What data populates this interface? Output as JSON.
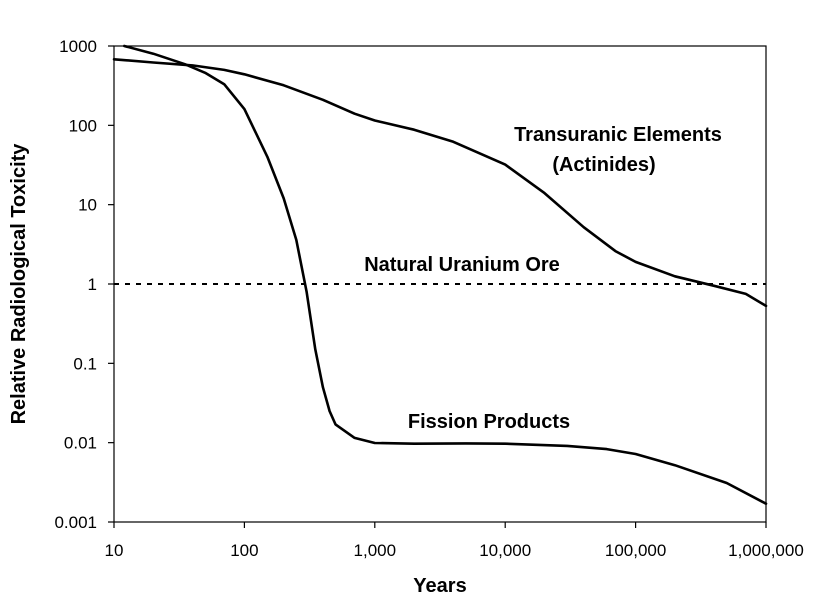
{
  "chart_data": {
    "type": "line",
    "title": "",
    "xlabel": "Years",
    "ylabel": "Relative Radiological Toxicity",
    "x_scale": "log",
    "y_scale": "log",
    "xlim": [
      10,
      1000000
    ],
    "ylim": [
      0.001,
      1000
    ],
    "grid": false,
    "x_ticks": [
      {
        "value": 10,
        "label": "10"
      },
      {
        "value": 100,
        "label": "100"
      },
      {
        "value": 1000,
        "label": "1,000"
      },
      {
        "value": 10000,
        "label": "10,000"
      },
      {
        "value": 100000,
        "label": "100,000"
      },
      {
        "value": 1000000,
        "label": "1,000,000"
      }
    ],
    "y_ticks": [
      {
        "value": 1000,
        "label": "1000"
      },
      {
        "value": 100,
        "label": "100"
      },
      {
        "value": 10,
        "label": "10"
      },
      {
        "value": 1,
        "label": "1"
      },
      {
        "value": 0.1,
        "label": "0.1"
      },
      {
        "value": 0.01,
        "label": "0.01"
      },
      {
        "value": 0.001,
        "label": "0.001"
      }
    ],
    "series": [
      {
        "label_lines": [
          "Transuranic Elements",
          "(Actinides)"
        ],
        "points": [
          [
            10,
            680
          ],
          [
            20,
            620
          ],
          [
            40,
            570
          ],
          [
            70,
            500
          ],
          [
            100,
            440
          ],
          [
            200,
            320
          ],
          [
            400,
            210
          ],
          [
            700,
            140
          ],
          [
            1000,
            115
          ],
          [
            2000,
            88
          ],
          [
            4000,
            62
          ],
          [
            10000,
            32
          ],
          [
            20000,
            14
          ],
          [
            40000,
            5.2
          ],
          [
            70000,
            2.6
          ],
          [
            100000,
            1.9
          ],
          [
            200000,
            1.25
          ],
          [
            400000,
            0.95
          ],
          [
            700000,
            0.75
          ],
          [
            1000000,
            0.53
          ]
        ]
      },
      {
        "label_lines": [
          "Fission Products"
        ],
        "points": [
          [
            12,
            1000
          ],
          [
            20,
            800
          ],
          [
            35,
            590
          ],
          [
            50,
            460
          ],
          [
            70,
            330
          ],
          [
            100,
            160
          ],
          [
            150,
            40
          ],
          [
            200,
            12
          ],
          [
            250,
            3.6
          ],
          [
            300,
            0.8
          ],
          [
            350,
            0.15
          ],
          [
            400,
            0.05
          ],
          [
            450,
            0.025
          ],
          [
            500,
            0.017
          ],
          [
            700,
            0.0115
          ],
          [
            1000,
            0.0099
          ],
          [
            2000,
            0.0097
          ],
          [
            5000,
            0.0098
          ],
          [
            10000,
            0.0097
          ],
          [
            30000,
            0.0091
          ],
          [
            60000,
            0.0083
          ],
          [
            100000,
            0.0072
          ],
          [
            200000,
            0.0052
          ],
          [
            500000,
            0.0031
          ],
          [
            1000000,
            0.0017
          ]
        ]
      }
    ],
    "reference_lines": [
      {
        "label": "Natural Uranium Ore",
        "y": 1,
        "style": "dashed"
      }
    ]
  }
}
